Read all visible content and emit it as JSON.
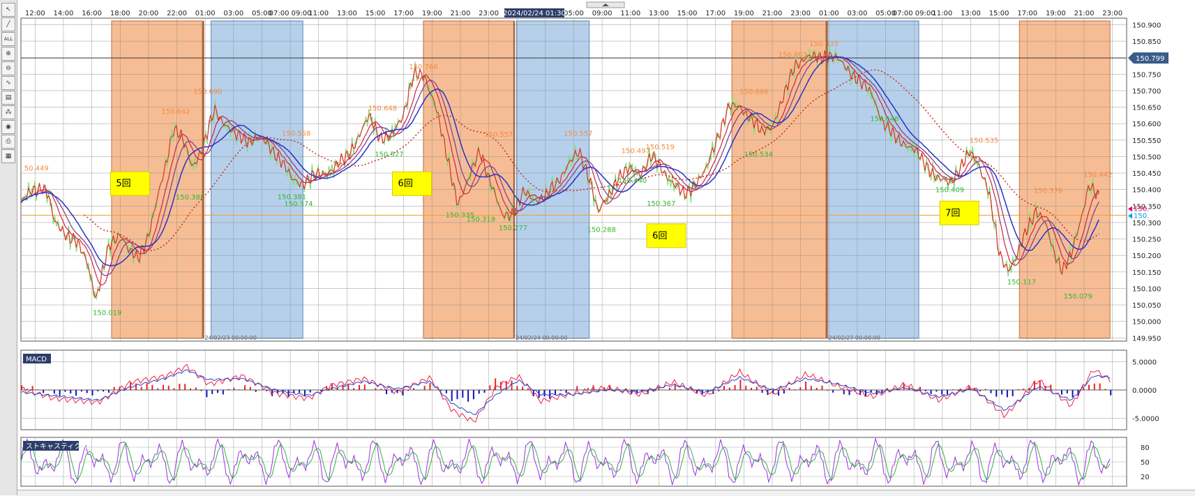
{
  "toolbar": {
    "tools": [
      {
        "name": "cursor-icon",
        "glyph": "↖"
      },
      {
        "name": "line-tool-icon",
        "glyph": "╱"
      },
      {
        "name": "all-tool-icon",
        "glyph": "ALL"
      },
      {
        "name": "zoom-in-icon",
        "glyph": "⊕"
      },
      {
        "name": "zoom-out-icon",
        "glyph": "⊖"
      },
      {
        "name": "chart-type-icon",
        "glyph": "∿"
      },
      {
        "name": "data-window-icon",
        "glyph": "▤"
      },
      {
        "name": "indicator-icon",
        "glyph": "⁂"
      },
      {
        "name": "view-icon",
        "glyph": "◉"
      },
      {
        "name": "print-icon",
        "glyph": "⎙"
      },
      {
        "name": "grid-layout-icon",
        "glyph": "▦"
      }
    ]
  },
  "chart_data": [
    {
      "type": "line",
      "panel": "price",
      "x_tick_labels": [
        "12:00",
        "14:00",
        "16:00",
        "18:00",
        "20:00",
        "22:00",
        "01:00",
        "03:00",
        "05:00",
        "07:00 09:00",
        "11:00",
        "13:00",
        "15:00",
        "17:00",
        "19:00",
        "21:00",
        "23:00",
        "",
        "03:00",
        "05:00",
        "09:00",
        "11:00",
        "13:00",
        "15:00",
        "17:00",
        "19:00",
        "21:00",
        "23:00",
        "01:00",
        "03:00",
        "05:00",
        "07:00 09:00",
        "11:00",
        "13:00",
        "15:00",
        "17:00",
        "19:00",
        "21:00",
        "23:00"
      ],
      "cursor_date_label": "2024/02/24 01:30",
      "y_tick_labels": [
        "150.900",
        "150.850",
        "150.800",
        "150.750",
        "150.700",
        "150.650",
        "150.600",
        "150.550",
        "150.500",
        "150.450",
        "150.400",
        "150.350",
        "150.300",
        "150.250",
        "150.200",
        "150.150",
        "150.100",
        "150.050",
        "150.000",
        "149.950"
      ],
      "ylim": [
        149.94,
        150.92
      ],
      "current_price_label": "150.799",
      "current_price": 150.799,
      "horizontal_level": 150.322,
      "right_edge_labels": [
        {
          "text": "150.",
          "color": "#e0007a"
        },
        {
          "text": "150.",
          "color": "#00a0e0"
        }
      ],
      "session_boxes": [
        {
          "color": "orange",
          "from_bar": 0.082,
          "to_bar": 0.164
        },
        {
          "color": "blue",
          "from_bar": 0.172,
          "to_bar": 0.255
        },
        {
          "color": "orange",
          "from_bar": 0.364,
          "to_bar": 0.446
        },
        {
          "color": "blue",
          "from_bar": 0.448,
          "to_bar": 0.514
        },
        {
          "color": "orange",
          "from_bar": 0.643,
          "to_bar": 0.728
        },
        {
          "color": "blue",
          "from_bar": 0.729,
          "to_bar": 0.812
        },
        {
          "color": "orange",
          "from_bar": 0.903,
          "to_bar": 0.985
        }
      ],
      "day_separator_labels": [
        "24/02/23 00:00:00",
        "24/02/24 00:00:00",
        "24/02/27 00:00:00"
      ],
      "note_boxes": [
        {
          "text": "5回",
          "t": 0.081,
          "price": 150.42
        },
        {
          "text": "6回",
          "t": 0.336,
          "price": 150.42
        },
        {
          "text": "6回",
          "t": 0.566,
          "price": 150.262
        },
        {
          "text": "7回",
          "t": 0.831,
          "price": 150.331
        }
      ],
      "price_annotations": [
        {
          "text": "50.449",
          "t": 0.003,
          "price": 150.458,
          "color": "orange"
        },
        {
          "text": "150.019",
          "t": 0.065,
          "price": 150.019,
          "color": "green"
        },
        {
          "text": "150.642",
          "t": 0.127,
          "price": 150.63,
          "color": "orange"
        },
        {
          "text": "150.388",
          "t": 0.14,
          "price": 150.37,
          "color": "green"
        },
        {
          "text": "150.690",
          "t": 0.156,
          "price": 150.69,
          "color": "orange"
        },
        {
          "text": "150.558",
          "t": 0.236,
          "price": 150.563,
          "color": "orange"
        },
        {
          "text": "150.381",
          "t": 0.232,
          "price": 150.371,
          "color": "green"
        },
        {
          "text": "150.374",
          "t": 0.238,
          "price": 150.35,
          "color": "green"
        },
        {
          "text": "150.648",
          "t": 0.314,
          "price": 150.64,
          "color": "orange"
        },
        {
          "text": "150.527",
          "t": 0.32,
          "price": 150.5,
          "color": "green"
        },
        {
          "text": "150.766",
          "t": 0.351,
          "price": 150.765,
          "color": "orange"
        },
        {
          "text": "150.335",
          "t": 0.384,
          "price": 150.316,
          "color": "green"
        },
        {
          "text": "150.319",
          "t": 0.403,
          "price": 150.303,
          "color": "green"
        },
        {
          "text": "150.557",
          "t": 0.419,
          "price": 150.56,
          "color": "orange"
        },
        {
          "text": "150.277",
          "t": 0.432,
          "price": 150.277,
          "color": "green"
        },
        {
          "text": "150.557",
          "t": 0.491,
          "price": 150.563,
          "color": "orange"
        },
        {
          "text": "150.497",
          "t": 0.543,
          "price": 150.51,
          "color": "orange"
        },
        {
          "text": "150.519",
          "t": 0.565,
          "price": 150.522,
          "color": "orange"
        },
        {
          "text": "150.440",
          "t": 0.54,
          "price": 150.42,
          "color": "green"
        },
        {
          "text": "150.367",
          "t": 0.566,
          "price": 150.351,
          "color": "green"
        },
        {
          "text": "150.288",
          "t": 0.512,
          "price": 150.271,
          "color": "green"
        },
        {
          "text": "150.686",
          "t": 0.65,
          "price": 150.69,
          "color": "orange"
        },
        {
          "text": "150.534",
          "t": 0.654,
          "price": 150.5,
          "color": "green"
        },
        {
          "text": "150.803",
          "t": 0.685,
          "price": 150.802,
          "color": "orange"
        },
        {
          "text": "150.833",
          "t": 0.713,
          "price": 150.835,
          "color": "orange"
        },
        {
          "text": "150.648",
          "t": 0.768,
          "price": 150.608,
          "color": "green"
        },
        {
          "text": "150.535",
          "t": 0.858,
          "price": 150.542,
          "color": "orange"
        },
        {
          "text": "150.409",
          "t": 0.827,
          "price": 150.392,
          "color": "green"
        },
        {
          "text": "150.376",
          "t": 0.916,
          "price": 150.39,
          "color": "orange"
        },
        {
          "text": "150.442",
          "t": 0.961,
          "price": 150.438,
          "color": "orange"
        },
        {
          "text": "150.117",
          "t": 0.892,
          "price": 150.112,
          "color": "green"
        },
        {
          "text": "150.079",
          "t": 0.943,
          "price": 150.069,
          "color": "green"
        }
      ],
      "close_path": [
        [
          0.0,
          150.36
        ],
        [
          0.01,
          150.395
        ],
        [
          0.02,
          150.41
        ],
        [
          0.025,
          150.38
        ],
        [
          0.03,
          150.3
        ],
        [
          0.04,
          150.27
        ],
        [
          0.05,
          150.24
        ],
        [
          0.06,
          150.18
        ],
        [
          0.068,
          150.07
        ],
        [
          0.074,
          150.15
        ],
        [
          0.08,
          150.23
        ],
        [
          0.09,
          150.27
        ],
        [
          0.098,
          150.21
        ],
        [
          0.106,
          150.19
        ],
        [
          0.115,
          150.26
        ],
        [
          0.122,
          150.35
        ],
        [
          0.13,
          150.46
        ],
        [
          0.138,
          150.59
        ],
        [
          0.145,
          150.56
        ],
        [
          0.155,
          150.47
        ],
        [
          0.165,
          150.53
        ],
        [
          0.175,
          150.64
        ],
        [
          0.185,
          150.6
        ],
        [
          0.195,
          150.56
        ],
        [
          0.205,
          150.55
        ],
        [
          0.215,
          150.56
        ],
        [
          0.225,
          150.53
        ],
        [
          0.235,
          150.49
        ],
        [
          0.245,
          150.43
        ],
        [
          0.255,
          150.42
        ],
        [
          0.265,
          150.44
        ],
        [
          0.275,
          150.45
        ],
        [
          0.285,
          150.47
        ],
        [
          0.295,
          150.5
        ],
        [
          0.305,
          150.56
        ],
        [
          0.315,
          150.62
        ],
        [
          0.325,
          150.56
        ],
        [
          0.335,
          150.56
        ],
        [
          0.345,
          150.62
        ],
        [
          0.355,
          150.75
        ],
        [
          0.365,
          150.74
        ],
        [
          0.375,
          150.66
        ],
        [
          0.385,
          150.5
        ],
        [
          0.395,
          150.36
        ],
        [
          0.405,
          150.43
        ],
        [
          0.415,
          150.52
        ],
        [
          0.425,
          150.42
        ],
        [
          0.435,
          150.32
        ],
        [
          0.445,
          150.33
        ],
        [
          0.455,
          150.39
        ],
        [
          0.465,
          150.37
        ],
        [
          0.475,
          150.38
        ],
        [
          0.485,
          150.42
        ],
        [
          0.495,
          150.48
        ],
        [
          0.505,
          150.51
        ],
        [
          0.515,
          150.43
        ],
        [
          0.522,
          150.33
        ],
        [
          0.53,
          150.37
        ],
        [
          0.54,
          150.44
        ],
        [
          0.55,
          150.46
        ],
        [
          0.56,
          150.45
        ],
        [
          0.57,
          150.5
        ],
        [
          0.58,
          150.46
        ],
        [
          0.59,
          150.42
        ],
        [
          0.6,
          150.38
        ],
        [
          0.61,
          150.42
        ],
        [
          0.62,
          150.46
        ],
        [
          0.63,
          150.56
        ],
        [
          0.64,
          150.65
        ],
        [
          0.65,
          150.65
        ],
        [
          0.66,
          150.62
        ],
        [
          0.67,
          150.57
        ],
        [
          0.68,
          150.6
        ],
        [
          0.69,
          150.68
        ],
        [
          0.7,
          150.78
        ],
        [
          0.71,
          150.8
        ],
        [
          0.72,
          150.8
        ],
        [
          0.73,
          150.81
        ],
        [
          0.74,
          150.79
        ],
        [
          0.75,
          150.76
        ],
        [
          0.76,
          150.72
        ],
        [
          0.77,
          150.69
        ],
        [
          0.78,
          150.6
        ],
        [
          0.79,
          150.56
        ],
        [
          0.8,
          150.54
        ],
        [
          0.81,
          150.51
        ],
        [
          0.82,
          150.47
        ],
        [
          0.83,
          150.43
        ],
        [
          0.84,
          150.42
        ],
        [
          0.85,
          150.47
        ],
        [
          0.858,
          150.51
        ],
        [
          0.866,
          150.48
        ],
        [
          0.875,
          150.4
        ],
        [
          0.885,
          150.2
        ],
        [
          0.893,
          150.16
        ],
        [
          0.9,
          150.19
        ],
        [
          0.91,
          150.28
        ],
        [
          0.918,
          150.34
        ],
        [
          0.926,
          150.3
        ],
        [
          0.934,
          150.21
        ],
        [
          0.942,
          150.16
        ],
        [
          0.95,
          150.2
        ],
        [
          0.958,
          150.3
        ],
        [
          0.966,
          150.42
        ],
        [
          0.975,
          150.37
        ]
      ]
    },
    {
      "type": "line",
      "panel": "macd",
      "title": "MACD",
      "y_tick_labels": [
        "5.0000",
        "0.0000",
        "-5.0000"
      ],
      "ylim": [
        -7,
        7
      ],
      "macd_path": [
        [
          0.0,
          0.2
        ],
        [
          0.03,
          -1.5
        ],
        [
          0.07,
          -2.2
        ],
        [
          0.1,
          1.4
        ],
        [
          0.13,
          2.4
        ],
        [
          0.15,
          4.2
        ],
        [
          0.17,
          1.0
        ],
        [
          0.2,
          2.5
        ],
        [
          0.23,
          -0.6
        ],
        [
          0.26,
          -1.5
        ],
        [
          0.28,
          0.8
        ],
        [
          0.31,
          2.0
        ],
        [
          0.34,
          -0.4
        ],
        [
          0.37,
          2.2
        ],
        [
          0.39,
          -3.6
        ],
        [
          0.41,
          -5.6
        ],
        [
          0.43,
          0.6
        ],
        [
          0.45,
          2.4
        ],
        [
          0.47,
          -2.0
        ],
        [
          0.5,
          -0.6
        ],
        [
          0.53,
          0.4
        ],
        [
          0.56,
          -0.8
        ],
        [
          0.59,
          1.4
        ],
        [
          0.62,
          -1.0
        ],
        [
          0.65,
          3.2
        ],
        [
          0.68,
          -0.8
        ],
        [
          0.71,
          2.8
        ],
        [
          0.74,
          0.6
        ],
        [
          0.77,
          -1.2
        ],
        [
          0.8,
          1.0
        ],
        [
          0.83,
          -1.8
        ],
        [
          0.86,
          0.6
        ],
        [
          0.89,
          -4.6
        ],
        [
          0.92,
          1.8
        ],
        [
          0.95,
          -2.8
        ],
        [
          0.97,
          3.6
        ],
        [
          0.985,
          1.8
        ]
      ],
      "signal_path": [
        [
          0.0,
          -0.4
        ],
        [
          0.03,
          -1.0
        ],
        [
          0.07,
          -1.8
        ],
        [
          0.1,
          0.6
        ],
        [
          0.13,
          2.0
        ],
        [
          0.15,
          3.5
        ],
        [
          0.17,
          1.8
        ],
        [
          0.2,
          2.0
        ],
        [
          0.23,
          0.0
        ],
        [
          0.26,
          -1.0
        ],
        [
          0.28,
          0.2
        ],
        [
          0.31,
          1.5
        ],
        [
          0.34,
          0.2
        ],
        [
          0.37,
          1.5
        ],
        [
          0.39,
          -2.4
        ],
        [
          0.41,
          -4.4
        ],
        [
          0.43,
          -0.8
        ],
        [
          0.45,
          1.7
        ],
        [
          0.47,
          -0.8
        ],
        [
          0.5,
          -0.8
        ],
        [
          0.53,
          0.0
        ],
        [
          0.56,
          -0.3
        ],
        [
          0.59,
          0.9
        ],
        [
          0.62,
          -0.4
        ],
        [
          0.65,
          2.2
        ],
        [
          0.68,
          0.0
        ],
        [
          0.71,
          2.0
        ],
        [
          0.74,
          1.0
        ],
        [
          0.77,
          -0.6
        ],
        [
          0.8,
          0.4
        ],
        [
          0.83,
          -1.2
        ],
        [
          0.86,
          0.2
        ],
        [
          0.89,
          -3.6
        ],
        [
          0.92,
          0.6
        ],
        [
          0.95,
          -1.8
        ],
        [
          0.97,
          2.5
        ],
        [
          0.985,
          2.2
        ]
      ]
    },
    {
      "type": "line",
      "panel": "stochastics",
      "title": "ストキャスティクス",
      "y_tick_labels": [
        "80",
        "50",
        "20"
      ],
      "ylim": [
        0,
        100
      ]
    }
  ]
}
